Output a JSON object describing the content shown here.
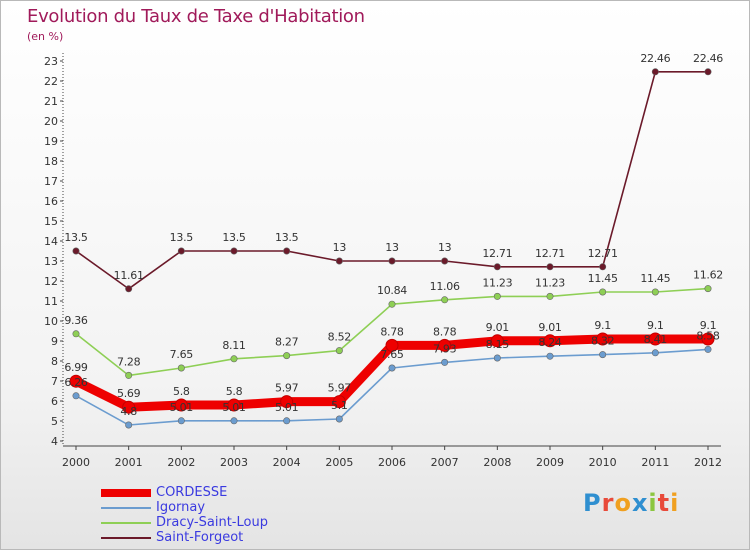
{
  "title": "Evolution du Taux de Taxe d'Habitation",
  "subtitle": "(en %)",
  "colors": {
    "CORDESSE": "#ee0000",
    "Igornay": "#6b9ccf",
    "Dracy-Saint-Loup": "#8ecf55",
    "Saint-Forgeot": "#6b1a2a"
  },
  "logo": {
    "letters": [
      "P",
      "r",
      "o",
      "x",
      "i",
      "t",
      "i"
    ],
    "colors": [
      "#2f8fd0",
      "#e84a3a",
      "#f0a020",
      "#2f8fd0",
      "#8bc640",
      "#e84a3a",
      "#f0a020"
    ]
  },
  "chart_data": {
    "type": "line",
    "x": [
      "2000",
      "2001",
      "2002",
      "2003",
      "2004",
      "2005",
      "2006",
      "2007",
      "2008",
      "2009",
      "2010",
      "2011",
      "2012"
    ],
    "ylim": [
      4,
      23
    ],
    "yticks": [
      "4",
      "5",
      "6",
      "7",
      "8",
      "9",
      "10",
      "11",
      "12",
      "13",
      "14",
      "15",
      "16",
      "17",
      "18",
      "19",
      "20",
      "21",
      "22",
      "23"
    ],
    "legend_position": "bottom-left",
    "series": [
      {
        "name": "CORDESSE",
        "values": [
          6.99,
          5.69,
          5.8,
          5.8,
          5.97,
          5.97,
          8.78,
          8.78,
          9.01,
          9.01,
          9.1,
          9.1,
          9.1
        ],
        "labels": [
          "6.99",
          "5.69",
          "5.8",
          "5.8",
          "5.97",
          "5.97",
          "8.78",
          "8.78",
          "9.01",
          "9.01",
          "9.1",
          "9.1",
          "9.1"
        ]
      },
      {
        "name": "Igornay",
        "values": [
          6.26,
          4.8,
          5.01,
          5.01,
          5.01,
          5.1,
          7.65,
          7.93,
          8.15,
          8.24,
          8.32,
          8.41,
          8.58
        ],
        "labels": [
          "6.26",
          "4.8",
          "5.01",
          "5.01",
          "5.01",
          "5.1",
          "7.65",
          "7.93",
          "8.15",
          "8.24",
          "8.32",
          "8.41",
          "8.58"
        ]
      },
      {
        "name": "Dracy-Saint-Loup",
        "values": [
          9.36,
          7.28,
          7.65,
          8.11,
          8.27,
          8.52,
          10.84,
          11.06,
          11.23,
          11.23,
          11.45,
          11.45,
          11.62
        ],
        "labels": [
          "9.36",
          "7.28",
          "7.65",
          "8.11",
          "8.27",
          "8.52",
          "10.84",
          "11.06",
          "11.23",
          "11.23",
          "11.45",
          "11.45",
          "11.62"
        ]
      },
      {
        "name": "Saint-Forgeot",
        "values": [
          13.5,
          11.61,
          13.5,
          13.5,
          13.5,
          13,
          13,
          13,
          12.71,
          12.71,
          12.71,
          22.46,
          22.46
        ],
        "labels": [
          "13.5",
          "11.61",
          "13.5",
          "13.5",
          "13.5",
          "13",
          "13",
          "13",
          "12.71",
          "12.71",
          "12.71",
          "22.46",
          "22.46"
        ]
      }
    ]
  }
}
